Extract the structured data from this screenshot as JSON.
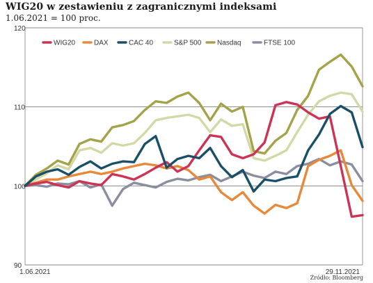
{
  "header": {
    "title": "WIG20 w zestawieniu z zagranicznymi indeksami",
    "subtitle": "1.06.2021 = 100 proc."
  },
  "source": "Źródło: Bloomberg",
  "chart_data": {
    "type": "line",
    "title": "WIG20 w zestawieniu z zagranicznymi indeksami",
    "subtitle": "1.06.2021 = 100 proc.",
    "xlabel": "",
    "ylabel": "",
    "ylim": [
      90,
      120
    ],
    "yticks": [
      90,
      100,
      110,
      120
    ],
    "grid": "horizontal",
    "legend": "top",
    "x_tick_labels": [
      "1.06.2021",
      "29.11.2021"
    ],
    "x": [
      0,
      4,
      8,
      12,
      16,
      20,
      24,
      28,
      32,
      36,
      40,
      44,
      48,
      52,
      56,
      60,
      64,
      68,
      72,
      76,
      80,
      84,
      88,
      92,
      96,
      100,
      104,
      108,
      112,
      116,
      120,
      124
    ],
    "series": [
      {
        "name": "WIG20",
        "color": "#cc3355",
        "values": [
          100,
          100.3,
          100.5,
          100.1,
          99.8,
          100.6,
          100.3,
          100.1,
          101.5,
          101.2,
          100.8,
          101.5,
          102.3,
          103,
          101.8,
          102.5,
          104.5,
          106.4,
          106.2,
          104,
          103.5,
          104,
          105.5,
          110.2,
          110.6,
          110.3,
          109.3,
          108.5,
          108.8,
          102.5,
          96.1,
          96.3
        ]
      },
      {
        "name": "DAX",
        "color": "#e8893a",
        "values": [
          100,
          100.4,
          100.8,
          100.8,
          101.2,
          101.5,
          101.8,
          101.5,
          101.8,
          102.2,
          102.5,
          102.8,
          102.6,
          102.2,
          102.5,
          102,
          100.8,
          101.2,
          99.2,
          98.2,
          99.2,
          97.5,
          96.5,
          97.6,
          97.2,
          97.8,
          102.5,
          103.3,
          103.8,
          104.5,
          100.1,
          98.1
        ]
      },
      {
        "name": "CAC 40",
        "color": "#1a4f68",
        "values": [
          100,
          101.2,
          101.8,
          102.1,
          101.4,
          102.4,
          103.1,
          102.2,
          102.8,
          103.1,
          103,
          105.3,
          106.3,
          102.3,
          103.4,
          103.8,
          103.5,
          104.8,
          102.5,
          101.1,
          102,
          99.3,
          100.8,
          100.6,
          101,
          101.2,
          104.5,
          106.5,
          109.1,
          110.1,
          109.3,
          104.9
        ]
      },
      {
        "name": "S&P 500",
        "color": "#d3d9a6",
        "values": [
          100,
          100.8,
          101.6,
          102.6,
          102.1,
          104.5,
          104.8,
          104.2,
          105.4,
          105.1,
          105.4,
          106.7,
          108.3,
          108.6,
          108.8,
          109,
          108.6,
          106.8,
          108.4,
          107.6,
          107.8,
          103.5,
          103.2,
          103.8,
          104.5,
          106.8,
          109,
          110.7,
          111.4,
          111.8,
          111.6,
          109.4
        ]
      },
      {
        "name": "Nasdaq",
        "color": "#a4a34a",
        "values": [
          100,
          101.4,
          102.2,
          103.2,
          102.7,
          105.3,
          105.9,
          105.6,
          107.4,
          107.7,
          108.2,
          109.6,
          110.7,
          110.5,
          111.3,
          111.8,
          110.5,
          108.3,
          110.4,
          109.4,
          110,
          104.4,
          104.1,
          105.7,
          106.7,
          109.6,
          111.4,
          114.7,
          115.7,
          116.6,
          115.1,
          112.6
        ]
      },
      {
        "name": "FTSE 100",
        "color": "#8a8e9e",
        "values": [
          100,
          100.1,
          99.9,
          100.3,
          100.2,
          100.6,
          99.8,
          100.2,
          97.5,
          99.6,
          100.4,
          100.1,
          99.8,
          100.5,
          100.9,
          100.7,
          101.1,
          101.4,
          100.6,
          101.2,
          101.8,
          101.3,
          101,
          101.8,
          101.5,
          102.5,
          102.8,
          103.4,
          102.6,
          103.1,
          102.7,
          100.6
        ]
      }
    ]
  }
}
